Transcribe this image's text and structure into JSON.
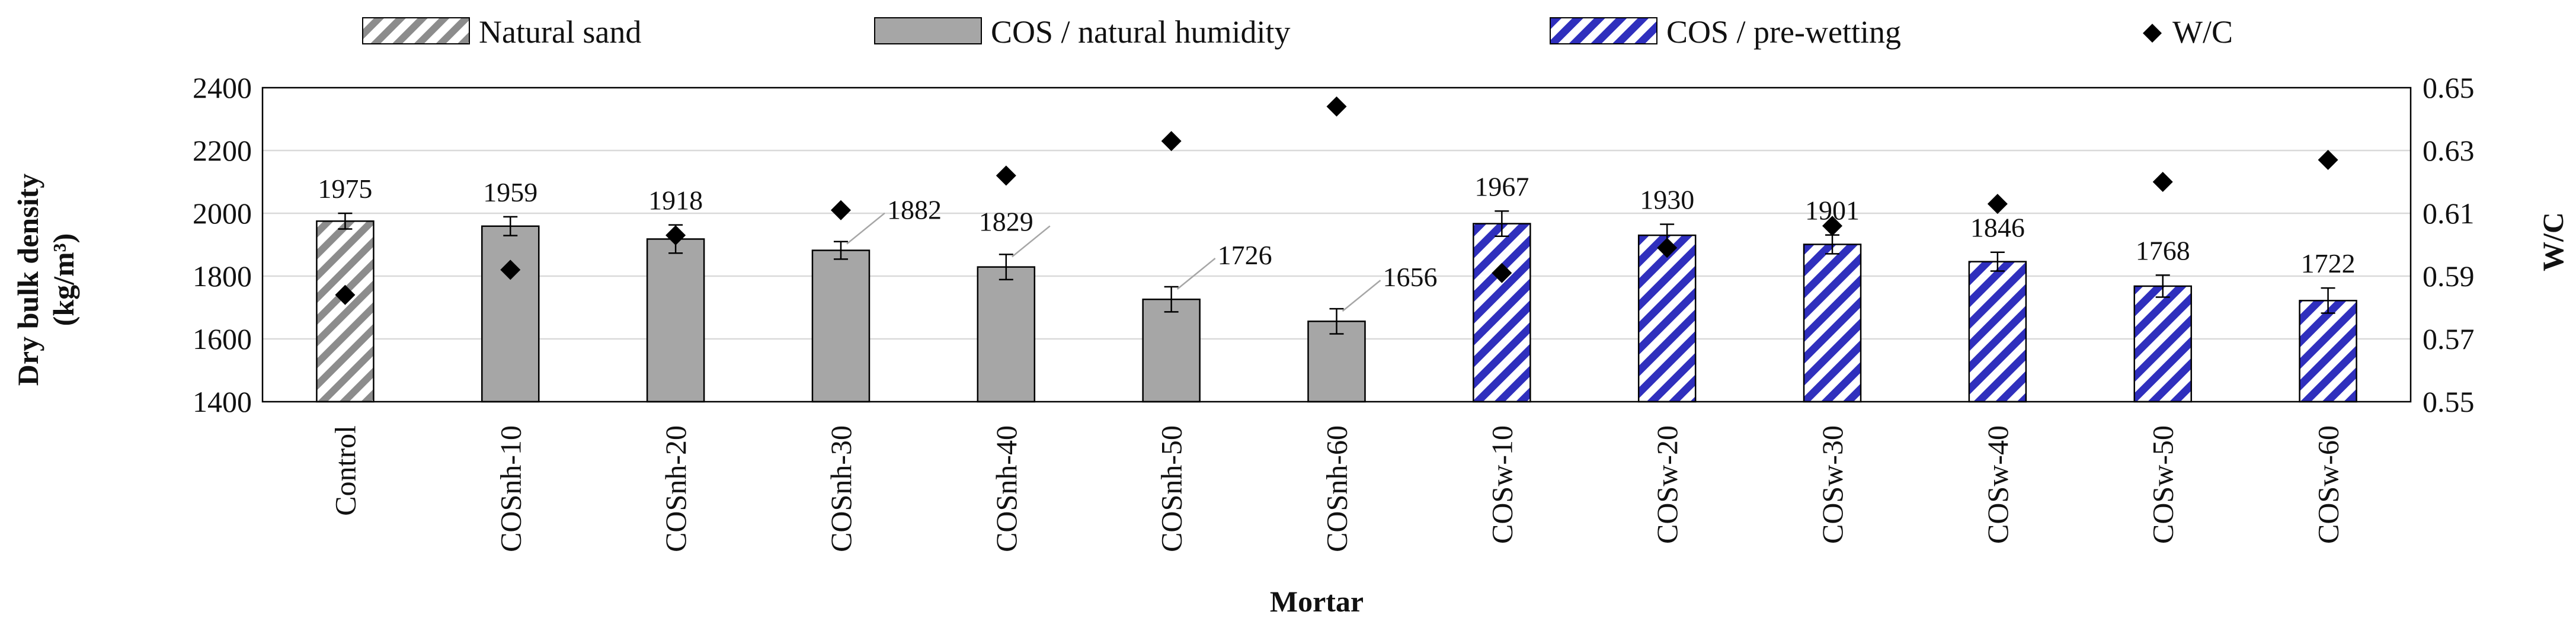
{
  "chart_data": {
    "type": "bar",
    "xlabel": "Mortar",
    "ylabel": "Dry bulk density",
    "ylabel_unit": "(kg/m³)",
    "y2label": "W/C",
    "ylim": [
      1400,
      2400
    ],
    "yticks": [
      1400,
      1600,
      1800,
      2000,
      2200,
      2400
    ],
    "y2lim": [
      0.55,
      0.65
    ],
    "y2ticks": [
      "0.55",
      "0.57",
      "0.59",
      "0.61",
      "0.63",
      "0.65"
    ],
    "categories": [
      "Control",
      "COSnh-10",
      "COSnh-20",
      "COSnh-30",
      "COSnh-40",
      "COSnh-50",
      "COSnh-60",
      "COSw-10",
      "COSw-20",
      "COSw-30",
      "COSw-40",
      "COSw-50",
      "COSw-60"
    ],
    "values": [
      1975,
      1959,
      1918,
      1882,
      1829,
      1726,
      1656,
      1967,
      1930,
      1901,
      1846,
      1768,
      1722
    ],
    "value_labels": [
      "1975",
      "1959",
      "1918",
      "1882",
      "1829",
      "1726",
      "1656",
      "1967",
      "1930",
      "1901",
      "1846",
      "1768",
      "1722"
    ],
    "errors": [
      25,
      30,
      45,
      28,
      40,
      40,
      40,
      40,
      35,
      30,
      30,
      35,
      40
    ],
    "groups": [
      0,
      1,
      1,
      1,
      1,
      1,
      1,
      2,
      2,
      2,
      2,
      2,
      2
    ],
    "wc": [
      0.584,
      0.592,
      0.603,
      0.611,
      0.622,
      0.633,
      0.644,
      0.591,
      0.599,
      0.606,
      0.613,
      0.62,
      0.627
    ],
    "legend": [
      {
        "label": "Natural sand",
        "style": "hatch-gray"
      },
      {
        "label": "COS / natural humidity",
        "style": "solid-gray"
      },
      {
        "label": "COS / pre-wetting",
        "style": "hatch-blue"
      },
      {
        "label": "W/C",
        "style": "diamond"
      }
    ],
    "colors": {
      "gray_fill": "#a6a6a6",
      "hatch_gray_line": "#7f7f7f",
      "blue_line": "#2f2fbd",
      "bar_edge": "#000000",
      "grid": "#d9d9d9",
      "marker": "#000000"
    },
    "legend_position": "top",
    "grid": true
  }
}
